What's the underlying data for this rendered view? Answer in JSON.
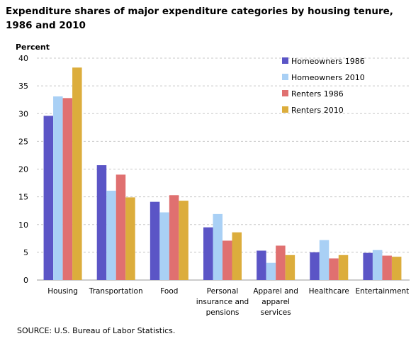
{
  "page": {
    "title_line1": "Expenditure shares of major expenditure categories by housing tenure,",
    "title_line2": "1986 and 2010",
    "source": "SOURCE: U.S. Bureau of Labor Statistics."
  },
  "chart_data": {
    "type": "bar",
    "title": "Expenditure shares of major expenditure categories by housing tenure, 1986 and 2010",
    "ylabel": "Percent",
    "xlabel": "",
    "ylim": [
      0,
      40
    ],
    "yticks": [
      0,
      5,
      10,
      15,
      20,
      25,
      30,
      35,
      40
    ],
    "grid": true,
    "legend_position": "top-right",
    "categories": [
      [
        "Housing"
      ],
      [
        "Transportation"
      ],
      [
        "Food"
      ],
      [
        "Personal",
        "insurance and",
        "pensions"
      ],
      [
        "Apparel and",
        "apparel",
        "services"
      ],
      [
        "Healthcare"
      ],
      [
        "Entertainment"
      ]
    ],
    "series": [
      {
        "name": "Homeowners 1986",
        "color": "#5b55c6",
        "values": [
          29.6,
          20.7,
          14.1,
          9.5,
          5.3,
          5.0,
          4.9
        ]
      },
      {
        "name": "Homeowners 2010",
        "color": "#a9d0f5",
        "values": [
          33.1,
          16.1,
          12.2,
          11.9,
          3.1,
          7.2,
          5.4
        ]
      },
      {
        "name": "Renters 1986",
        "color": "#e07070",
        "values": [
          32.8,
          19.0,
          15.3,
          7.1,
          6.2,
          3.9,
          4.4
        ]
      },
      {
        "name": "Renters 2010",
        "color": "#dcad3c",
        "values": [
          38.3,
          14.9,
          14.3,
          8.6,
          4.5,
          4.5,
          4.2
        ]
      }
    ]
  }
}
